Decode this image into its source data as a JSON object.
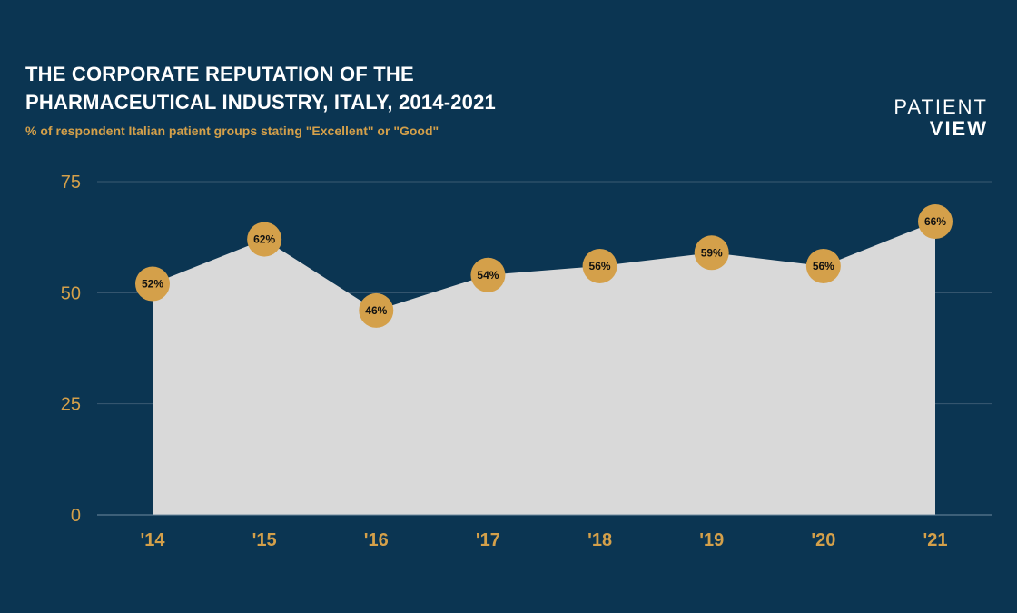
{
  "header": {
    "title_line1": "THE CORPORATE REPUTATION OF THE",
    "title_line2": "PHARMACEUTICAL INDUSTRY, ITALY, 2014-2021",
    "subtitle": "% of respondent Italian patient groups stating \"Excellent\" or \"Good\""
  },
  "logo": {
    "line1": "PATIENT",
    "line2": "VIEW"
  },
  "colors": {
    "background": "#0b3552",
    "accent": "#d4a04a",
    "area_fill": "#d9d9d9",
    "gridline": "#3b5a72"
  },
  "chart_data": {
    "type": "area",
    "title": "THE CORPORATE REPUTATION OF THE PHARMACEUTICAL INDUSTRY, ITALY, 2014-2021",
    "subtitle": "% of respondent Italian patient groups stating \"Excellent\" or \"Good\"",
    "categories": [
      "'14",
      "'15",
      "'16",
      "'17",
      "'18",
      "'19",
      "'20",
      "'21"
    ],
    "values": [
      52,
      62,
      46,
      54,
      56,
      59,
      56,
      66
    ],
    "data_labels": [
      "52%",
      "62%",
      "46%",
      "54%",
      "56%",
      "59%",
      "56%",
      "66%"
    ],
    "yticks": [
      0,
      25,
      50,
      75
    ],
    "ylim": [
      0,
      75
    ],
    "grid": true,
    "xlabel": "",
    "ylabel": ""
  }
}
